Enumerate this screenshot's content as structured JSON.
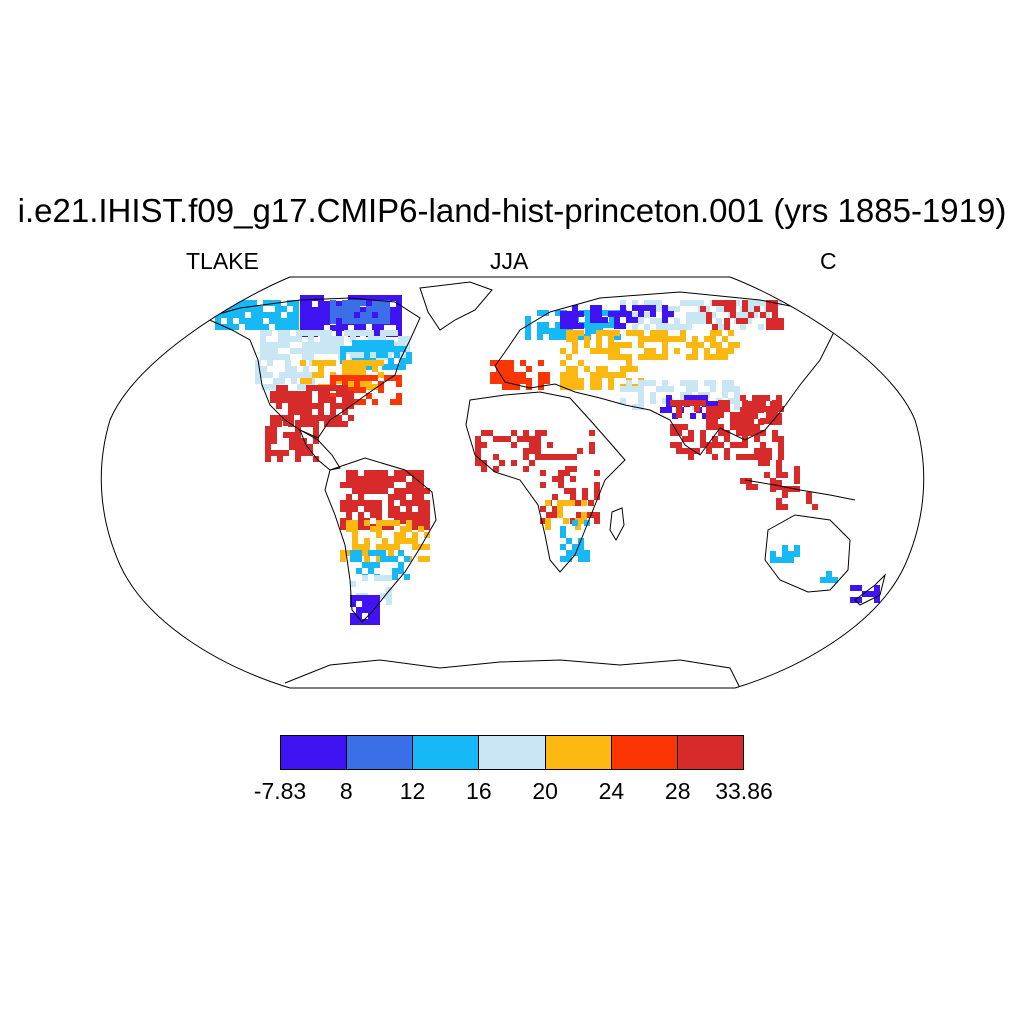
{
  "title": "i.e21.IHIST.f09_g17.CMIP6-land-hist-princeton.001 (yrs 1885-1919)",
  "left_label": "TLAKE",
  "center_label": "JJA",
  "right_label": "C",
  "legend": {
    "labels": [
      "-7.83",
      "8",
      "12",
      "16",
      "20",
      "24",
      "28",
      "33.86"
    ],
    "colors": [
      "#3f13f2",
      "#3a6fe8",
      "#16b9f5",
      "#c8e6f3",
      "#fbb811",
      "#fc3505",
      "#d72a2a"
    ]
  },
  "map": {
    "projection": "Robinson",
    "background": "#ffffff",
    "coastline_color": "#000000"
  }
}
